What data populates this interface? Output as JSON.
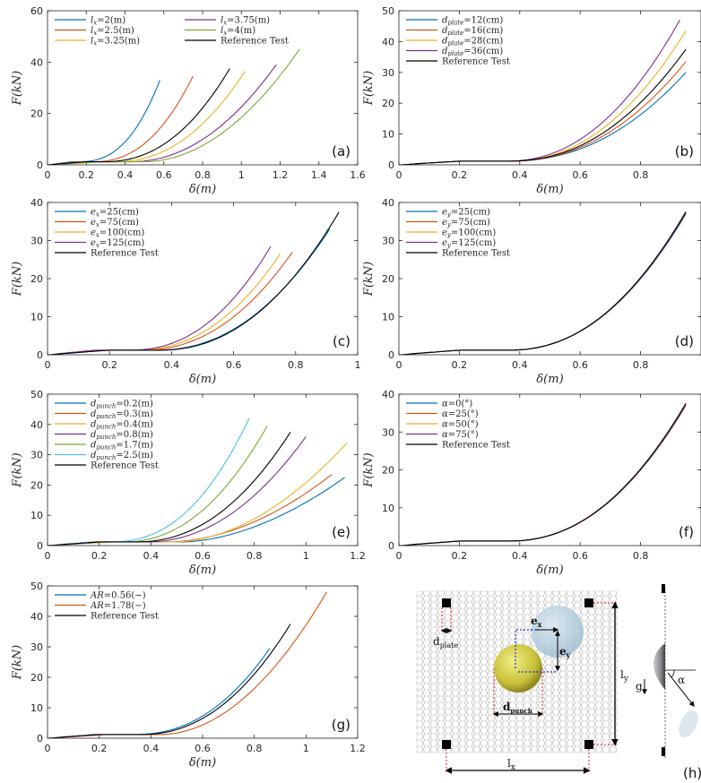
{
  "colors": {
    "blue": "#0072BD",
    "orange": "#D95319",
    "yellow": "#EDB120",
    "purple": "#7E2F8E",
    "green": "#77AC30",
    "cyan": "#4DBEEE",
    "black": "#000000"
  },
  "chart_data": [
    {
      "type": "line",
      "panel": "(a)",
      "xlabel": "δ(m)",
      "ylabel": "F(kN)",
      "xlim": [
        0,
        1.6
      ],
      "ylim": [
        0,
        60
      ],
      "xticks": [
        "0",
        "0.2",
        "0.4",
        "0.6",
        "0.8",
        "1",
        "1.2",
        "1.4",
        "1.6"
      ],
      "yticks": [
        "0",
        "20",
        "40",
        "60"
      ],
      "legend_columns": 2,
      "legend_position": "top-left",
      "series": [
        {
          "name": "lx=2(m)",
          "color": "blue",
          "x_end": 0.58,
          "y_end": 33
        },
        {
          "name": "lx=2.5(m)",
          "color": "orange",
          "x_end": 0.75,
          "y_end": 34.5
        },
        {
          "name": "lx=3.25(m)",
          "color": "yellow",
          "x_end": 1.02,
          "y_end": 36.5
        },
        {
          "name": "lx=3.75(m)",
          "color": "purple",
          "x_end": 1.18,
          "y_end": 39
        },
        {
          "name": "lx=4(m)",
          "color": "green",
          "x_end": 1.3,
          "y_end": 45
        },
        {
          "name": "Reference Test",
          "color": "black",
          "x_end": 0.94,
          "y_end": 37.5
        }
      ]
    },
    {
      "type": "line",
      "panel": "(b)",
      "xlabel": "δ(m)",
      "ylabel": "F(kN)",
      "xlim": [
        0,
        1
      ],
      "ylim": [
        0,
        50
      ],
      "xticks": [
        "0",
        "0.2",
        "0.4",
        "0.6",
        "0.8"
      ],
      "yticks": [
        "0",
        "10",
        "20",
        "30",
        "40",
        "50"
      ],
      "legend_position": "top-left",
      "series": [
        {
          "name": "dplate=12(cm)",
          "color": "blue",
          "x_end": 0.95,
          "y_end": 30
        },
        {
          "name": "dplate=16(cm)",
          "color": "orange",
          "x_end": 0.95,
          "y_end": 33.5
        },
        {
          "name": "dplate=28(cm)",
          "color": "yellow",
          "x_end": 0.95,
          "y_end": 43.5
        },
        {
          "name": "dplate=36(cm)",
          "color": "purple",
          "x_end": 0.93,
          "y_end": 47
        },
        {
          "name": "Reference Test",
          "color": "black",
          "x_end": 0.95,
          "y_end": 37.5
        }
      ]
    },
    {
      "type": "line",
      "panel": "(c)",
      "xlabel": "δ(m)",
      "ylabel": "F(kN)",
      "xlim": [
        0,
        1
      ],
      "ylim": [
        0,
        40
      ],
      "xticks": [
        "0",
        "0.2",
        "0.4",
        "0.6",
        "0.8",
        "1"
      ],
      "yticks": [
        "0",
        "10",
        "20",
        "30",
        "40"
      ],
      "legend_position": "top-left",
      "series": [
        {
          "name": "ex=25(cm)",
          "color": "blue",
          "x_end": 0.91,
          "y_end": 33
        },
        {
          "name": "ex=75(cm)",
          "color": "orange",
          "x_end": 0.79,
          "y_end": 27
        },
        {
          "name": "ex=100(cm)",
          "color": "yellow",
          "x_end": 0.75,
          "y_end": 26.5
        },
        {
          "name": "ex=125(cm)",
          "color": "purple",
          "x_end": 0.72,
          "y_end": 28.5
        },
        {
          "name": "Reference Test",
          "color": "black",
          "x_end": 0.94,
          "y_end": 37.5
        }
      ]
    },
    {
      "type": "line",
      "panel": "(d)",
      "xlabel": "δ(m)",
      "ylabel": "F(kN)",
      "xlim": [
        0,
        1
      ],
      "ylim": [
        0,
        40
      ],
      "xticks": [
        "0",
        "0.2",
        "0.4",
        "0.6",
        "0.8"
      ],
      "yticks": [
        "0",
        "10",
        "20",
        "30",
        "40"
      ],
      "legend_position": "top-left",
      "series": [
        {
          "name": "ey=25(cm)",
          "color": "blue",
          "x_end": 0.95,
          "y_end": 37
        },
        {
          "name": "ey=75(cm)",
          "color": "orange",
          "x_end": 0.95,
          "y_end": 37.3
        },
        {
          "name": "ey=100(cm)",
          "color": "yellow",
          "x_end": 0.95,
          "y_end": 37.5
        },
        {
          "name": "ey=125(cm)",
          "color": "purple",
          "x_end": 0.95,
          "y_end": 37.6
        },
        {
          "name": "Reference Test",
          "color": "black",
          "x_end": 0.95,
          "y_end": 37.5
        }
      ]
    },
    {
      "type": "line",
      "panel": "(e)",
      "xlabel": "δ(m)",
      "ylabel": "F(kN)",
      "xlim": [
        0,
        1.2
      ],
      "ylim": [
        0,
        50
      ],
      "xticks": [
        "0",
        "0.2",
        "0.4",
        "0.6",
        "0.8",
        "1",
        "1.2"
      ],
      "yticks": [
        "0",
        "10",
        "20",
        "30",
        "40",
        "50"
      ],
      "legend_position": "top-left",
      "series": [
        {
          "name": "dpunch=0.2(m)",
          "color": "blue",
          "x_end": 1.15,
          "y_end": 22.5
        },
        {
          "name": "dpunch=0.3(m)",
          "color": "orange",
          "x_end": 1.1,
          "y_end": 23.5
        },
        {
          "name": "dpunch=0.4(m)",
          "color": "yellow",
          "x_end": 1.16,
          "y_end": 34
        },
        {
          "name": "dpunch=0.8(m)",
          "color": "purple",
          "x_end": 1.0,
          "y_end": 36
        },
        {
          "name": "dpunch=1.7(m)",
          "color": "green",
          "x_end": 0.85,
          "y_end": 39.5
        },
        {
          "name": "dpunch=2.5(m)",
          "color": "cyan",
          "x_end": 0.78,
          "y_end": 42
        },
        {
          "name": "Reference Test",
          "color": "black",
          "x_end": 0.94,
          "y_end": 37.5
        }
      ]
    },
    {
      "type": "line",
      "panel": "(f)",
      "xlabel": "δ(m)",
      "ylabel": "F(kN)",
      "xlim": [
        0,
        1
      ],
      "ylim": [
        0,
        40
      ],
      "xticks": [
        "0",
        "0.2",
        "0.4",
        "0.6",
        "0.8"
      ],
      "yticks": [
        "0",
        "10",
        "20",
        "30",
        "40"
      ],
      "legend_position": "top-left",
      "series": [
        {
          "name": "α=0(°)",
          "color": "blue",
          "x_end": 0.95,
          "y_end": 37
        },
        {
          "name": "α=25(°)",
          "color": "orange",
          "x_end": 0.95,
          "y_end": 37.2
        },
        {
          "name": "α=50(°)",
          "color": "yellow",
          "x_end": 0.95,
          "y_end": 37.4
        },
        {
          "name": "α=75(°)",
          "color": "purple",
          "x_end": 0.95,
          "y_end": 37.6
        },
        {
          "name": "Reference Test",
          "color": "black",
          "x_end": 0.95,
          "y_end": 37.5
        }
      ]
    },
    {
      "type": "line",
      "panel": "(g)",
      "xlabel": "δ(m)",
      "ylabel": "F(kN)",
      "xlim": [
        0,
        1.2
      ],
      "ylim": [
        0,
        50
      ],
      "xticks": [
        "0",
        "0.2",
        "0.4",
        "0.6",
        "0.8",
        "1",
        "1.2"
      ],
      "yticks": [
        "0",
        "10",
        "20",
        "30",
        "40",
        "50"
      ],
      "legend_position": "top-left",
      "series": [
        {
          "name": "AR=0.56(−)",
          "color": "blue",
          "x_end": 0.86,
          "y_end": 29.5
        },
        {
          "name": "AR=1.78(−)",
          "color": "orange",
          "x_end": 1.08,
          "y_end": 48
        },
        {
          "name": "Reference Test",
          "color": "black",
          "x_end": 0.94,
          "y_end": 37.5
        }
      ]
    }
  ],
  "schematic": {
    "panel": "(h)",
    "labels": {
      "ex": "e",
      "ex_sub": "x",
      "ey": "e",
      "ey_sub": "y",
      "dplate": "d",
      "dplate_sub": "plate",
      "dpunch": "d",
      "dpunch_sub": "punch",
      "ly": "l",
      "ly_sub": "y",
      "lx": "l",
      "lx_sub": "x",
      "g": "g",
      "alpha": "α"
    }
  }
}
